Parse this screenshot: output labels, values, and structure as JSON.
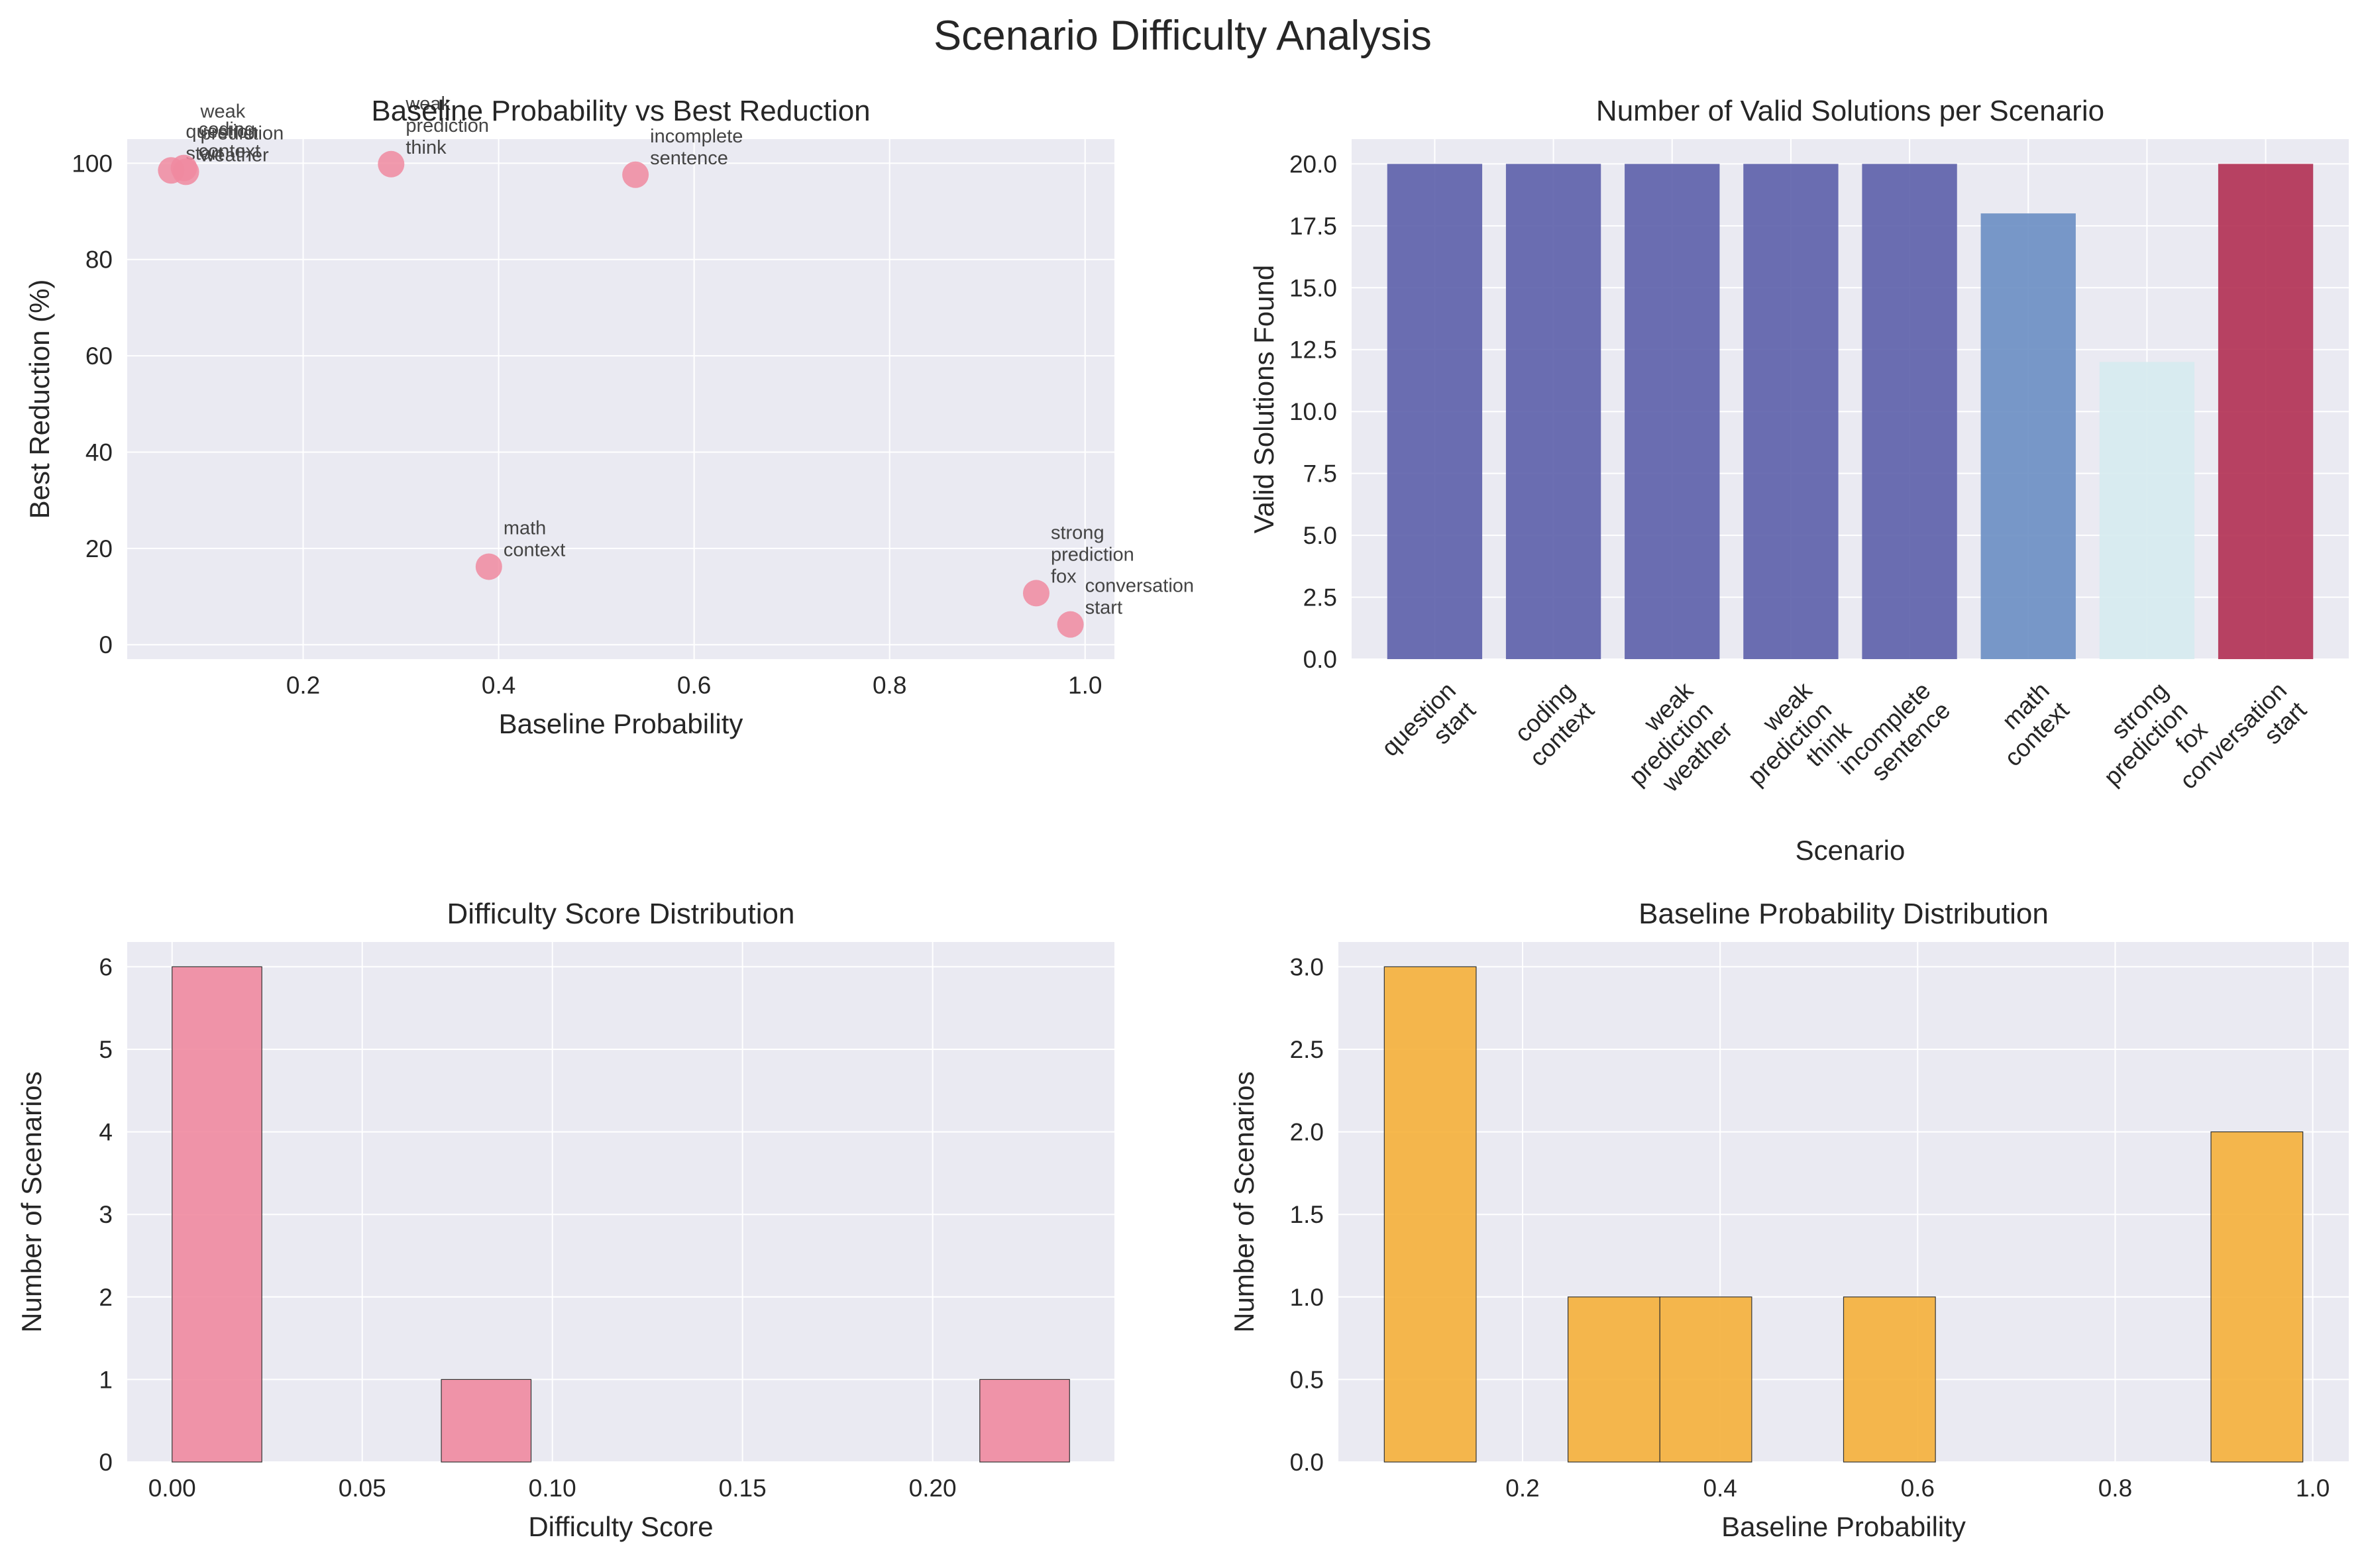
{
  "suptitle": "Scenario Difficulty Analysis",
  "chart_data": [
    {
      "type": "scatter",
      "title": "Baseline Probability vs Best Reduction",
      "xlabel": "Baseline Probability",
      "ylabel": "Best Reduction (%)",
      "xlim": [
        0.02,
        1.03
      ],
      "ylim": [
        -3,
        105
      ],
      "xticks": [
        0.2,
        0.4,
        0.6,
        0.8,
        1.0
      ],
      "xtick_labels": [
        "0.2",
        "0.4",
        "0.6",
        "0.8",
        "1.0"
      ],
      "yticks": [
        0,
        20,
        40,
        60,
        80,
        100
      ],
      "ytick_labels": [
        "0",
        "20",
        "40",
        "60",
        "80",
        "100"
      ],
      "grid": true,
      "color": "#F08AA0",
      "points": [
        {
          "label": "question\nstart",
          "x": 0.065,
          "y": 98.5
        },
        {
          "label": "coding\ncontext",
          "x": 0.078,
          "y": 99.0
        },
        {
          "label": "weak\nprediction\nweather",
          "x": 0.08,
          "y": 98.2
        },
        {
          "label": "weak\nprediction\nthink",
          "x": 0.29,
          "y": 99.8
        },
        {
          "label": "incomplete\nsentence",
          "x": 0.54,
          "y": 97.6
        },
        {
          "label": "math\ncontext",
          "x": 0.39,
          "y": 16.2
        },
        {
          "label": "strong\nprediction\nfox",
          "x": 0.95,
          "y": 10.7
        },
        {
          "label": "conversation\nstart",
          "x": 0.985,
          "y": 4.2
        }
      ]
    },
    {
      "type": "bar",
      "title": "Number of Valid Solutions per Scenario",
      "xlabel": "Scenario",
      "ylabel": "Valid Solutions Found",
      "categories": [
        "question\nstart",
        "coding\ncontext",
        "weak\nprediction\nweather",
        "weak\nprediction\nthink",
        "incomplete\nsentence",
        "math\ncontext",
        "strong\nprediction\nfox",
        "conversation\nstart"
      ],
      "values": [
        20,
        20,
        20,
        20,
        20,
        18,
        12,
        20
      ],
      "colors": [
        "#5C5FAA",
        "#5C5FAA",
        "#5C5FAA",
        "#5C5FAA",
        "#5C5FAA",
        "#6A8EC3",
        "#D6EBF0",
        "#B12F52"
      ],
      "ylim": [
        0,
        21
      ],
      "yticks": [
        0,
        2.5,
        5,
        7.5,
        10,
        12.5,
        15,
        17.5,
        20
      ],
      "ytick_labels": [
        "0.0",
        "2.5",
        "5.0",
        "7.5",
        "10.0",
        "12.5",
        "15.0",
        "17.5",
        "20.0"
      ],
      "grid": true
    },
    {
      "type": "bar",
      "title": "Difficulty Score Distribution",
      "xlabel": "Difficulty Score",
      "ylabel": "Number of Scenarios",
      "bins": [
        {
          "x0": 0.0,
          "x1": 0.0236,
          "count": 6
        },
        {
          "x0": 0.0708,
          "x1": 0.0944,
          "count": 1
        },
        {
          "x0": 0.2124,
          "x1": 0.236,
          "count": 1
        }
      ],
      "xlim": [
        -0.0118,
        0.2478
      ],
      "ylim": [
        0,
        6.3
      ],
      "xticks": [
        0,
        0.05,
        0.1,
        0.15,
        0.2
      ],
      "xtick_labels": [
        "0.00",
        "0.05",
        "0.10",
        "0.15",
        "0.20"
      ],
      "yticks": [
        0,
        1,
        2,
        3,
        4,
        5,
        6
      ],
      "ytick_labels": [
        "0",
        "1",
        "2",
        "3",
        "4",
        "5",
        "6"
      ],
      "color": "#F08AA0",
      "grid": true
    },
    {
      "type": "bar",
      "title": "Baseline Probability Distribution",
      "xlabel": "Baseline Probability",
      "ylabel": "Number of Scenarios",
      "bins": [
        {
          "x0": 0.06,
          "x1": 0.153,
          "count": 3
        },
        {
          "x0": 0.246,
          "x1": 0.339,
          "count": 1
        },
        {
          "x0": 0.339,
          "x1": 0.432,
          "count": 1
        },
        {
          "x0": 0.525,
          "x1": 0.618,
          "count": 1
        },
        {
          "x0": 0.897,
          "x1": 0.99,
          "count": 2
        }
      ],
      "xlim": [
        0.0135,
        1.0365
      ],
      "ylim": [
        0,
        3.15
      ],
      "xticks": [
        0.2,
        0.4,
        0.6,
        0.8,
        1.0
      ],
      "xtick_labels": [
        "0.2",
        "0.4",
        "0.6",
        "0.8",
        "1.0"
      ],
      "yticks": [
        0,
        0.5,
        1,
        1.5,
        2,
        2.5,
        3
      ],
      "ytick_labels": [
        "0.0",
        "0.5",
        "1.0",
        "1.5",
        "2.0",
        "2.5",
        "3.0"
      ],
      "color": "#F5B03A",
      "grid": true
    }
  ]
}
